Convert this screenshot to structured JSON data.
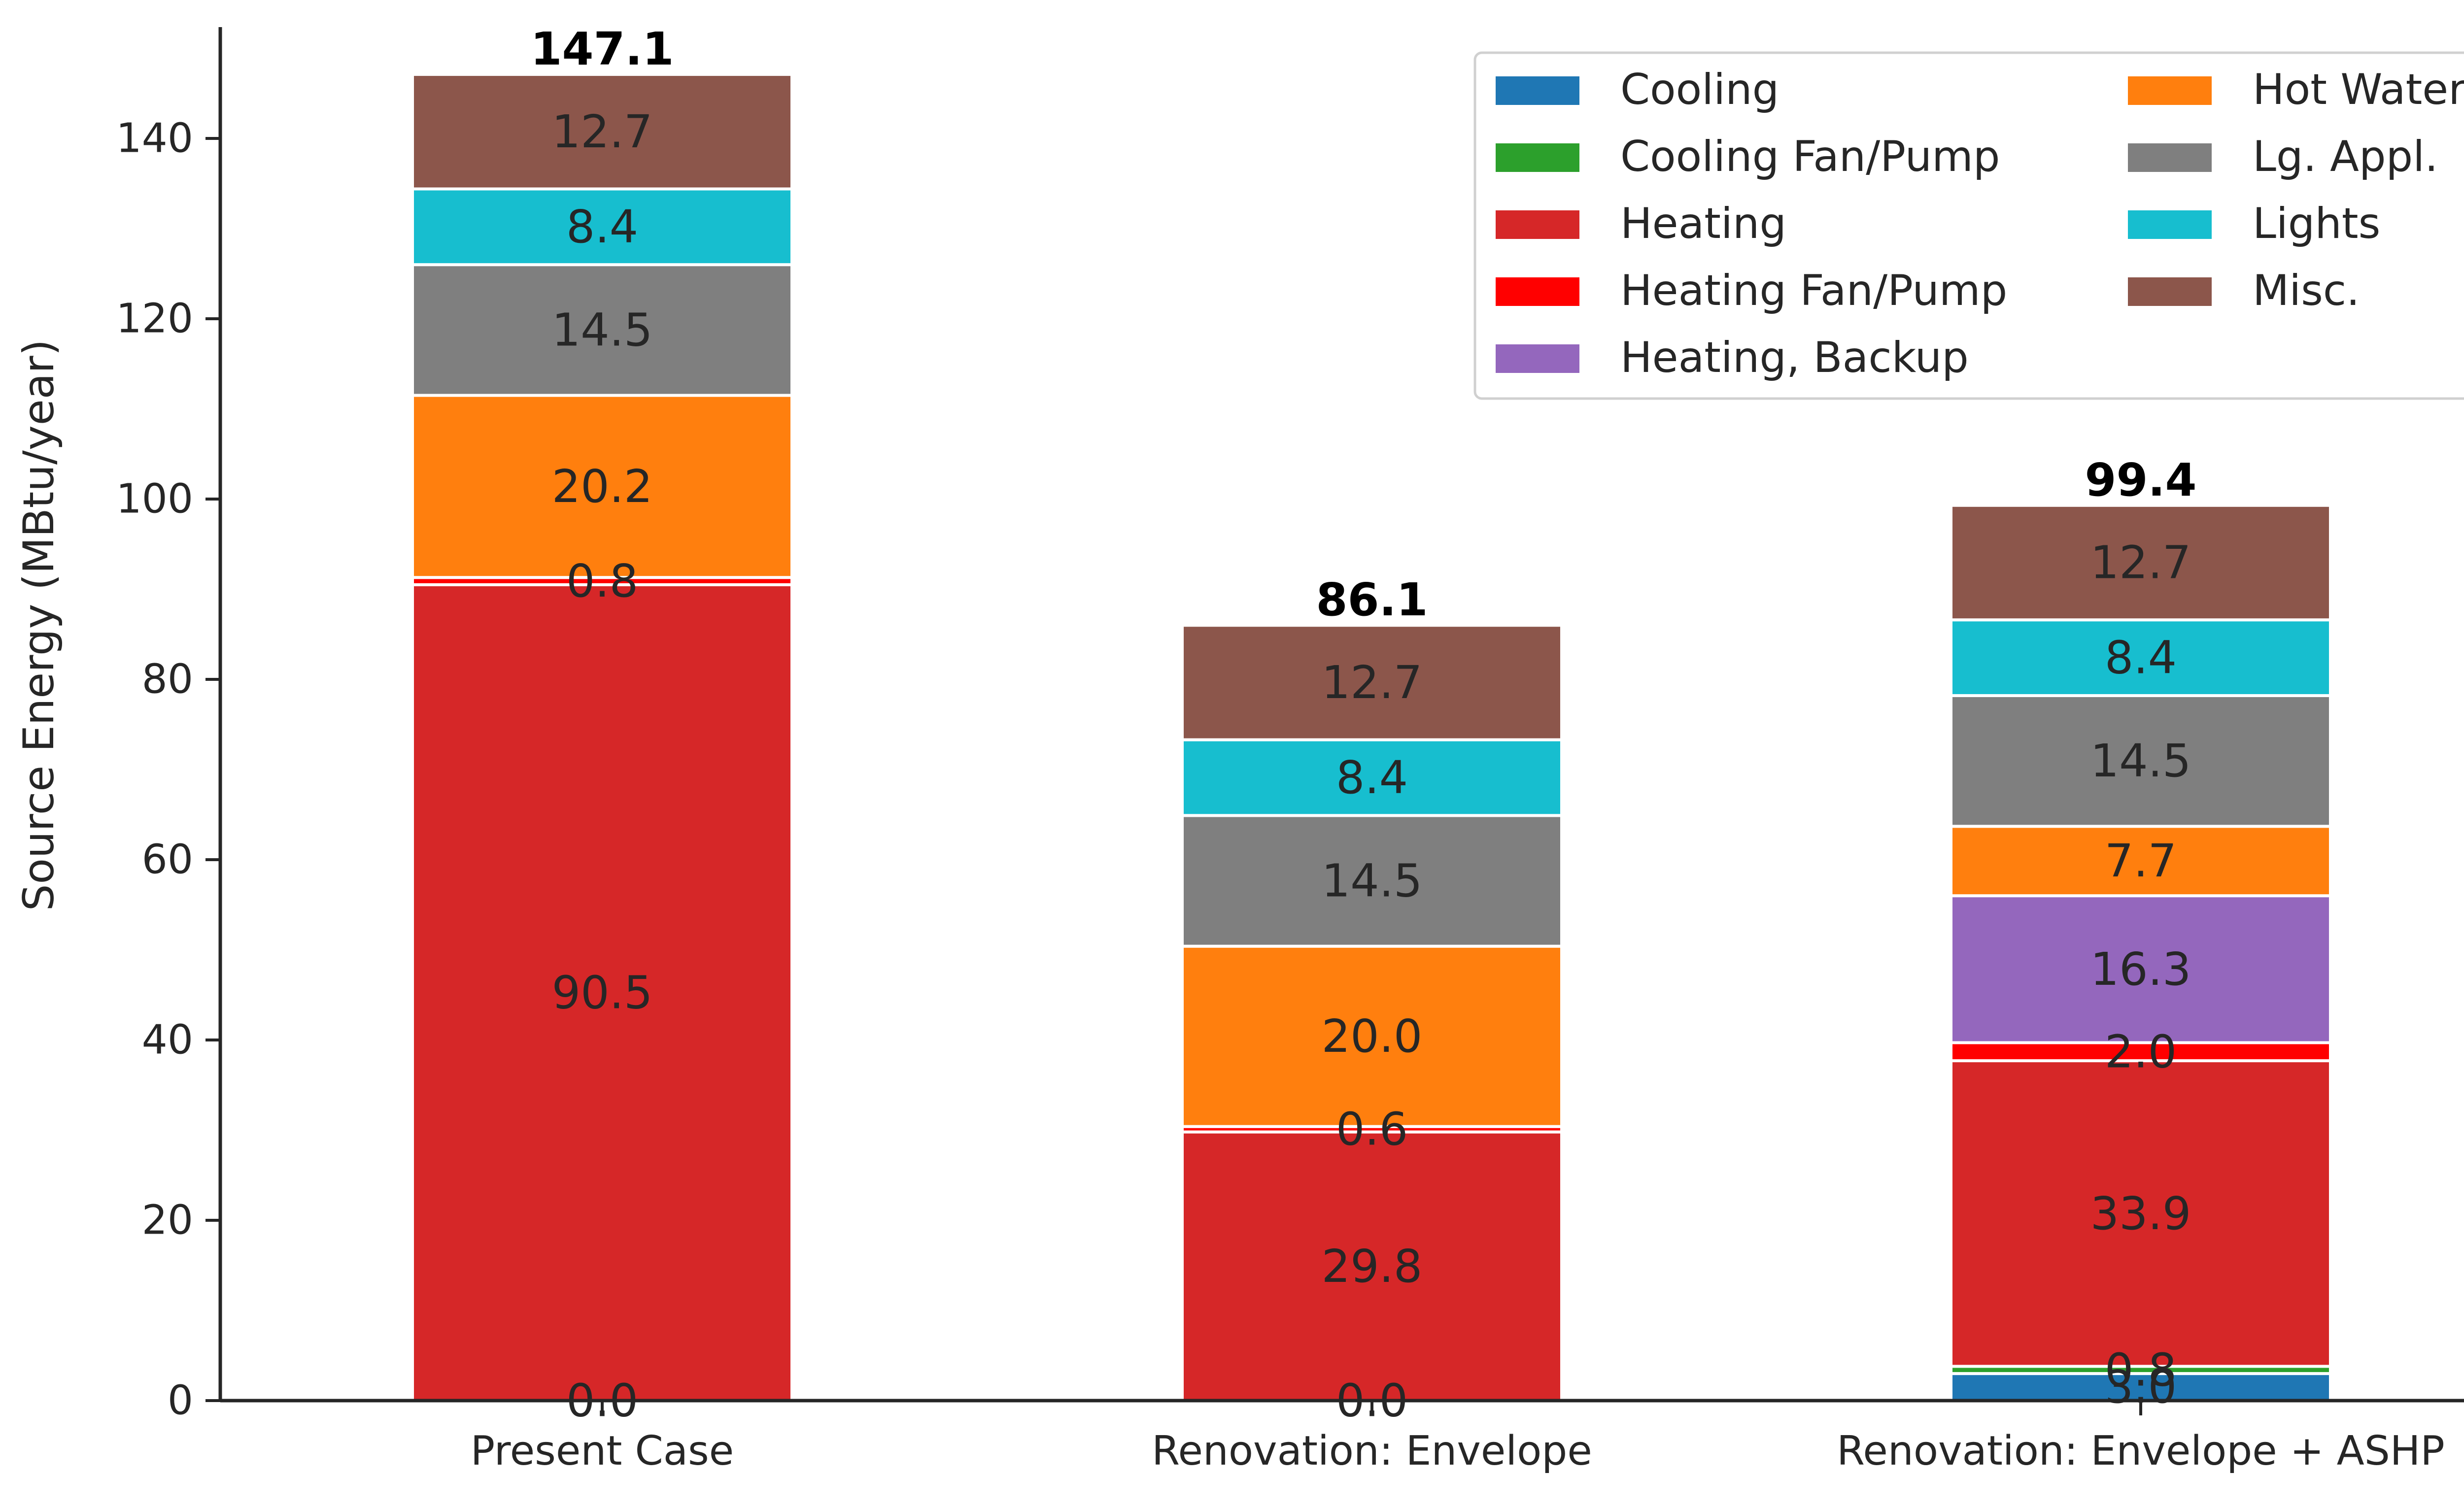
{
  "chart_data": {
    "type": "bar",
    "stacked": true,
    "categories": [
      "Present Case",
      "Renovation: Envelope",
      "Renovation: Envelope + ASHP"
    ],
    "ylabel": "Source Energy (MBtu/year)",
    "xlabel": "",
    "ylim": [
      0,
      155
    ],
    "yticks": [
      0,
      20,
      40,
      60,
      80,
      100,
      120,
      140
    ],
    "grid": false,
    "legend_position": "top-right",
    "legend_columns": 2,
    "series": [
      {
        "name": "Cooling",
        "color": "#1f77b4",
        "values": [
          0.0,
          0.0,
          3.0
        ],
        "labels": [
          "0.0",
          "0.0",
          "3.0"
        ]
      },
      {
        "name": "Cooling Fan/Pump",
        "color": "#2ca02c",
        "values": [
          0.0,
          0.0,
          0.8
        ],
        "labels": [
          "",
          "",
          "0.8"
        ]
      },
      {
        "name": "Heating",
        "color": "#d62728",
        "values": [
          90.5,
          29.8,
          33.9
        ],
        "labels": [
          "90.5",
          "29.8",
          "33.9"
        ]
      },
      {
        "name": "Heating Fan/Pump",
        "color": "#ff0000",
        "values": [
          0.8,
          0.6,
          2.0
        ],
        "labels": [
          "0.8",
          "0.6",
          "2.0"
        ]
      },
      {
        "name": "Heating, Backup",
        "color": "#9467bd",
        "values": [
          0.0,
          0.0,
          16.3
        ],
        "labels": [
          "",
          "",
          "16.3"
        ]
      },
      {
        "name": "Hot Water",
        "color": "#ff7f0e",
        "values": [
          20.2,
          20.0,
          7.7
        ],
        "labels": [
          "20.2",
          "20.0",
          "7.7"
        ]
      },
      {
        "name": "Lg. Appl.",
        "color": "#7f7f7f",
        "values": [
          14.5,
          14.5,
          14.5
        ],
        "labels": [
          "14.5",
          "14.5",
          "14.5"
        ]
      },
      {
        "name": "Lights",
        "color": "#17becf",
        "values": [
          8.4,
          8.4,
          8.4
        ],
        "labels": [
          "8.4",
          "8.4",
          "8.4"
        ]
      },
      {
        "name": "Misc.",
        "color": "#8c564b",
        "values": [
          12.7,
          12.7,
          12.7
        ],
        "labels": [
          "12.7",
          "12.7",
          "12.7"
        ]
      }
    ],
    "totals": [
      "147.1",
      "86.1",
      "99.4"
    ]
  }
}
